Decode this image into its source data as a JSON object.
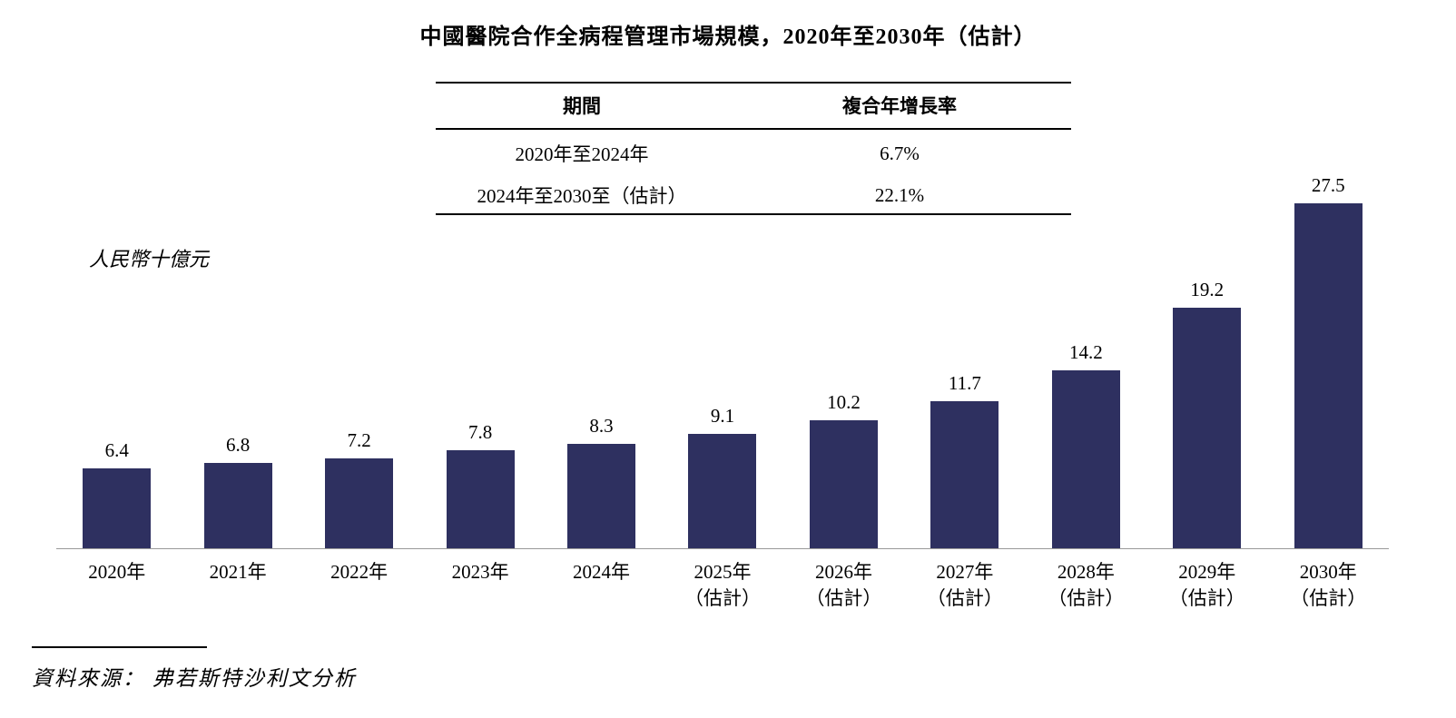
{
  "title": "中國醫院合作全病程管理市場規模，2020年至2030年（估計）",
  "table": {
    "headers": [
      "期間",
      "複合年增長率"
    ],
    "rows": [
      [
        "2020年至2024年",
        "6.7%"
      ],
      [
        "2024年至2030至（估計）",
        "22.1%"
      ]
    ]
  },
  "y_axis_label": "人民幣十億元",
  "source": "資料來源： 弗若斯特沙利文分析",
  "colors": {
    "bar": "#2e3060",
    "baseline": "#9a9a9a"
  },
  "chart_data": {
    "type": "bar",
    "title": "中國醫院合作全病程管理市場規模，2020年至2030年（估計）",
    "categories": [
      "2020年",
      "2021年",
      "2022年",
      "2023年",
      "2024年",
      "2025年",
      "2026年",
      "2027年",
      "2028年",
      "2029年",
      "2030年"
    ],
    "values": [
      6.4,
      6.8,
      7.2,
      7.8,
      8.3,
      9.1,
      10.2,
      11.7,
      14.2,
      19.2,
      27.5
    ],
    "estimate_suffix": "（估計）",
    "estimate_from_index": 5,
    "xlabel": "",
    "ylabel": "人民幣十億元",
    "ylim": [
      0,
      27.5
    ],
    "grid": false,
    "legend": false,
    "value_labels": true
  }
}
